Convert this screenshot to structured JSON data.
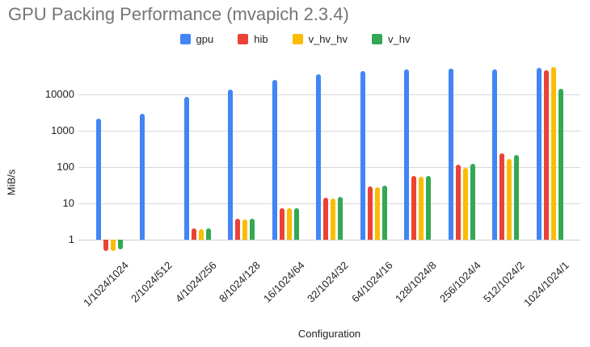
{
  "chart_data": {
    "type": "bar",
    "title": "GPU Packing Performance (mvapich 2.3.4)",
    "xlabel": "Configuration",
    "ylabel": "MiB/s",
    "y_scale": "log",
    "y_ticks": [
      1,
      10,
      100,
      1000,
      10000
    ],
    "ylim": [
      0.4,
      100000
    ],
    "grid": true,
    "legend_position": "top",
    "categories": [
      "1/1024/1024",
      "2/1024/512",
      "4/1024/256",
      "8/1024/128",
      "16/1024/64",
      "32/1024/32",
      "64/1024/16",
      "128/1024/8",
      "256/1024/4",
      "512/1024/2",
      "1024/1024/1"
    ],
    "series": [
      {
        "name": "gpu",
        "color": "#4285F4",
        "values": [
          2200,
          2900,
          8600,
          13500,
          25000,
          36000,
          45000,
          48500,
          51000,
          49000,
          55000
        ]
      },
      {
        "name": "hib",
        "color": "#EA4335",
        "values": [
          0.5,
          null,
          2.0,
          3.7,
          7.3,
          14.0,
          29,
          57,
          115,
          240,
          46000
        ]
      },
      {
        "name": "v_hv_hv",
        "color": "#FBBC04",
        "values": [
          0.5,
          null,
          1.9,
          3.6,
          7.2,
          13.5,
          28,
          55,
          97,
          165,
          56000
        ]
      },
      {
        "name": "v_hv",
        "color": "#34A853",
        "values": [
          0.55,
          null,
          2.0,
          3.7,
          7.5,
          14.7,
          31,
          58,
          120,
          220,
          14000
        ]
      }
    ]
  },
  "colors": {
    "title_text": "#757575",
    "axis_text": "#222222",
    "gridline": "#d9d9d9",
    "background": "#ffffff"
  }
}
